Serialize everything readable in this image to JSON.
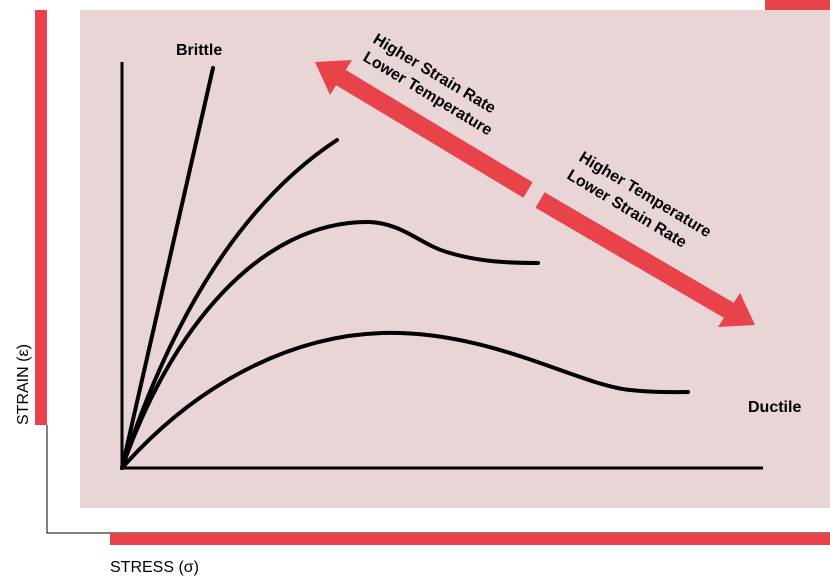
{
  "labels": {
    "brittle": "Brittle",
    "ductile": "Ductile"
  },
  "arrows": [
    {
      "lines": [
        "Higher Strain Rate",
        "Lower Temperature"
      ]
    },
    {
      "lines": [
        "Higher Temperature",
        "Lower Strain Rate"
      ]
    }
  ],
  "axes": {
    "y_label": "STRAIN (ε)",
    "x_label": "STRESS (σ)"
  }
}
